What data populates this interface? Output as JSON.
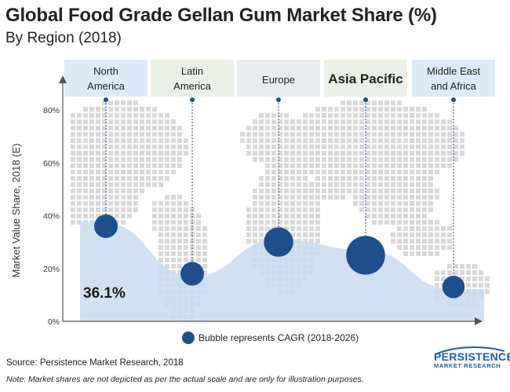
{
  "title": "Global Food Grade Gellan Gum Market Share (%)",
  "subtitle": "By Region (2018)",
  "source": "Source: Persistence Market Research, 2018",
  "note": "Note: Market shares are not depicted as per the actual scale and are only for illustration purposes.",
  "logo": {
    "line1": "PERSISTENCE",
    "line2": "MARKET RESEARCH"
  },
  "colors": {
    "bubble": "#1f4e8c",
    "area": "#c9dcef",
    "accent": "#1e5ea8"
  },
  "chart_data": {
    "type": "bubble",
    "ylabel": "Market Value Share, 2018 (E)",
    "ylim": [
      0,
      80
    ],
    "yticks": [
      "0%",
      "20%",
      "40%",
      "60%",
      "80%"
    ],
    "grid": false,
    "legend": "Bubble represents CAGR (2018-2026)",
    "legend_position": "bottom",
    "categories": [
      "North America",
      "Latin America",
      "Europe",
      "Asia Pacific",
      "Middle East and Africa"
    ],
    "category_label_lines": [
      [
        "North",
        "America"
      ],
      [
        "Latin",
        "America"
      ],
      [
        "Europe"
      ],
      [
        "Asia Pacific"
      ],
      [
        "Middle East",
        "and Africa"
      ]
    ],
    "category_colors": [
      "#dcebf7",
      "#e8f1e4",
      "#e8ecef",
      "#e8f1e4",
      "#dcebf7"
    ],
    "emphasized_category": "Asia Pacific",
    "values": [
      36,
      18,
      30,
      25,
      13
    ],
    "bubble_size_relative": [
      1.0,
      1.0,
      1.25,
      1.65,
      0.95
    ],
    "annotation": "36.1%",
    "shaded_area": [
      {
        "x": -0.3,
        "y": 37.5
      },
      {
        "x": 0,
        "y": 37
      },
      {
        "x": 1,
        "y": 17
      },
      {
        "x": 2,
        "y": 31
      },
      {
        "x": 3,
        "y": 27
      },
      {
        "x": 4,
        "y": 12
      },
      {
        "x": 4.35,
        "y": 12
      }
    ]
  }
}
